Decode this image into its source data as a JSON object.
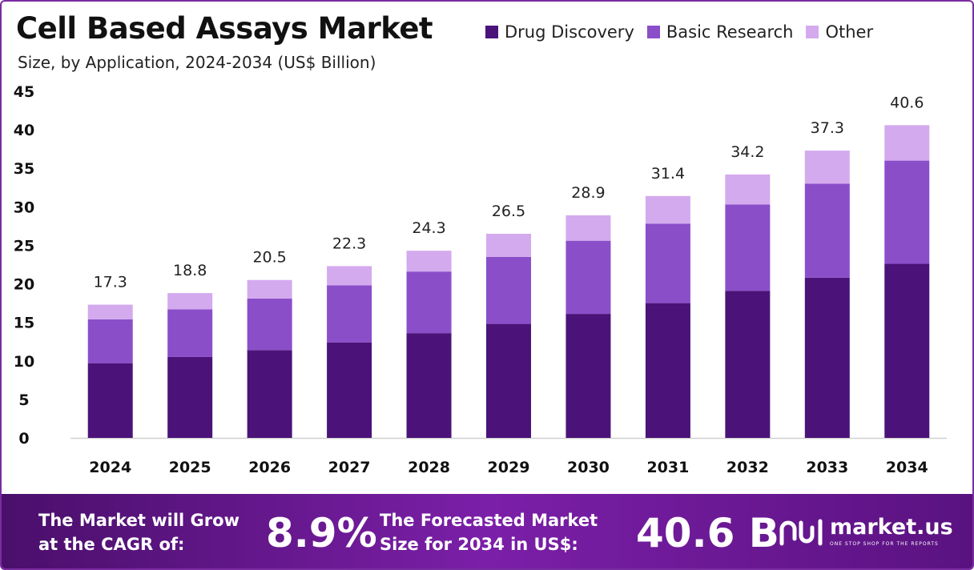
{
  "header": {
    "title": "Cell Based Assays Market",
    "subtitle": "Size, by Application, 2024-2034 (US$ Billion)"
  },
  "chart_data": {
    "type": "bar",
    "stacked": true,
    "categories": [
      "2024",
      "2025",
      "2026",
      "2027",
      "2028",
      "2029",
      "2030",
      "2031",
      "2032",
      "2033",
      "2034"
    ],
    "series": [
      {
        "name": "Drug Discovery",
        "color": "#4b1379",
        "values": [
          9.7,
          10.5,
          11.4,
          12.4,
          13.6,
          14.8,
          16.1,
          17.5,
          19.1,
          20.8,
          22.6
        ]
      },
      {
        "name": "Basic Research",
        "color": "#8b4ec9",
        "values": [
          5.7,
          6.2,
          6.7,
          7.4,
          8.0,
          8.7,
          9.5,
          10.3,
          11.2,
          12.2,
          13.4
        ]
      },
      {
        "name": "Other",
        "color": "#d4aaee",
        "values": [
          1.9,
          2.1,
          2.4,
          2.5,
          2.7,
          3.0,
          3.3,
          3.6,
          3.9,
          4.3,
          4.6
        ]
      }
    ],
    "totals": [
      "17.3",
      "18.8",
      "20.5",
      "22.3",
      "24.3",
      "26.5",
      "28.9",
      "31.4",
      "34.2",
      "37.3",
      "40.6"
    ],
    "ylim": [
      0,
      45
    ],
    "yticks": [
      0,
      5,
      10,
      15,
      20,
      25,
      30,
      35,
      40,
      45
    ],
    "grid": false,
    "legend_position": "top-right"
  },
  "footer": {
    "cagr_label_line1": "The Market will Grow",
    "cagr_label_line2": "at the CAGR of:",
    "cagr_value": "8.9%",
    "forecast_label_line1": "The Forecasted Market",
    "forecast_label_line2": "Size for 2034 in US$:",
    "forecast_value": "40.6 B",
    "brand_name": "market.us",
    "brand_tagline": "ONE STOP SHOP FOR THE REPORTS"
  }
}
